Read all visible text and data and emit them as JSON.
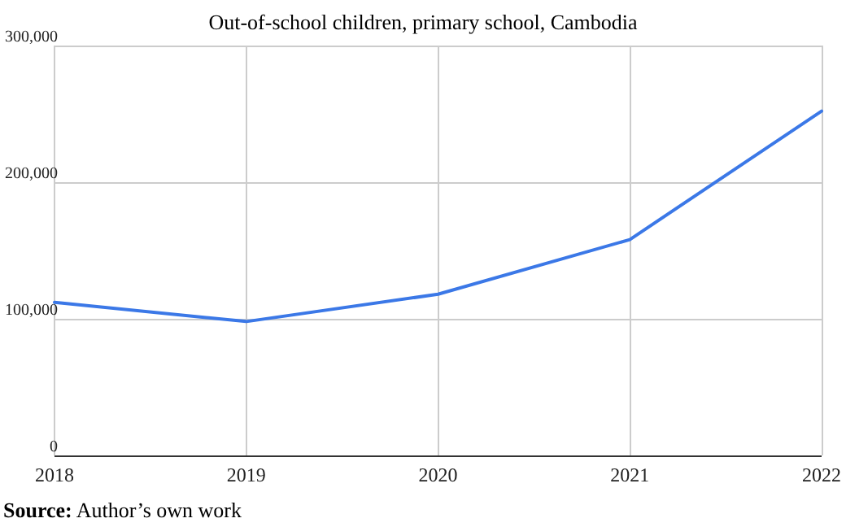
{
  "chart_data": {
    "type": "line",
    "title": "Out-of-school children, primary school, Cambodia",
    "x": [
      2018,
      2019,
      2020,
      2021,
      2022
    ],
    "series": [
      {
        "color": "#3b78e7",
        "values": [
          112000,
          98000,
          118000,
          158000,
          252000
        ]
      }
    ],
    "xlim": [
      2018,
      2022
    ],
    "xticks": [
      2018,
      2019,
      2020,
      2021,
      2022
    ],
    "ylim": [
      0,
      300000
    ],
    "yticks": [
      {
        "value": 0,
        "label": "0"
      },
      {
        "value": 100000,
        "label": "100,000"
      },
      {
        "value": 200000,
        "label": "200,000"
      },
      {
        "value": 300000,
        "label": "300,000"
      }
    ],
    "grid": true,
    "marker": "none",
    "line_style": "solid",
    "annotations": [
      "Source: Author’s own work"
    ]
  }
}
